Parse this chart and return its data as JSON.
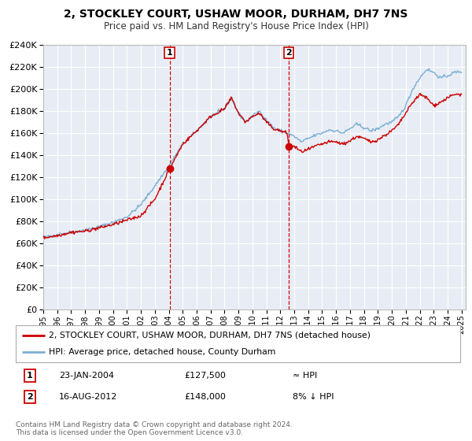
{
  "title": "2, STOCKLEY COURT, USHAW MOOR, DURHAM, DH7 7NS",
  "subtitle": "Price paid vs. HM Land Registry's House Price Index (HPI)",
  "ylim": [
    0,
    240000
  ],
  "yticks": [
    0,
    20000,
    40000,
    60000,
    80000,
    100000,
    120000,
    140000,
    160000,
    180000,
    200000,
    220000,
    240000
  ],
  "xlim_start": 1995.0,
  "xlim_end": 2025.3,
  "background_color": "#ffffff",
  "plot_bg_color": "#e8edf5",
  "grid_color": "#ffffff",
  "hpi_color": "#7bafd4",
  "price_color": "#cc0000",
  "sale1_date": 2004.06,
  "sale1_price": 127500,
  "sale2_date": 2012.62,
  "sale2_price": 148000,
  "legend_label1": "2, STOCKLEY COURT, USHAW MOOR, DURHAM, DH7 7NS (detached house)",
  "legend_label2": "HPI: Average price, detached house, County Durham",
  "table_row1_label": "1",
  "table_row1_date": "23-JAN-2004",
  "table_row1_price": "£127,500",
  "table_row1_hpi": "≈ HPI",
  "table_row2_label": "2",
  "table_row2_date": "16-AUG-2012",
  "table_row2_price": "£148,000",
  "table_row2_hpi": "8% ↓ HPI",
  "footer_line1": "Contains HM Land Registry data © Crown copyright and database right 2024.",
  "footer_line2": "This data is licensed under the Open Government Licence v3.0.",
  "hpi_anchors": [
    [
      1995.0,
      65000
    ],
    [
      1996.0,
      68000
    ],
    [
      1997.0,
      70000
    ],
    [
      1998.0,
      72000
    ],
    [
      1999.0,
      75000
    ],
    [
      2000.0,
      79000
    ],
    [
      2001.0,
      84000
    ],
    [
      2002.0,
      95000
    ],
    [
      2003.0,
      112000
    ],
    [
      2004.0,
      130000
    ],
    [
      2005.0,
      150000
    ],
    [
      2006.0,
      162000
    ],
    [
      2007.0,
      175000
    ],
    [
      2008.0,
      182000
    ],
    [
      2008.5,
      192000
    ],
    [
      2009.0,
      178000
    ],
    [
      2009.5,
      170000
    ],
    [
      2010.0,
      175000
    ],
    [
      2010.5,
      180000
    ],
    [
      2011.0,
      172000
    ],
    [
      2011.5,
      165000
    ],
    [
      2012.0,
      162000
    ],
    [
      2012.5,
      160000
    ],
    [
      2013.0,
      157000
    ],
    [
      2013.5,
      152000
    ],
    [
      2014.0,
      155000
    ],
    [
      2014.5,
      158000
    ],
    [
      2015.0,
      160000
    ],
    [
      2015.5,
      163000
    ],
    [
      2016.0,
      162000
    ],
    [
      2016.5,
      160000
    ],
    [
      2017.0,
      164000
    ],
    [
      2017.5,
      168000
    ],
    [
      2018.0,
      165000
    ],
    [
      2018.5,
      162000
    ],
    [
      2019.0,
      164000
    ],
    [
      2019.5,
      168000
    ],
    [
      2020.0,
      170000
    ],
    [
      2020.5,
      175000
    ],
    [
      2021.0,
      185000
    ],
    [
      2021.5,
      200000
    ],
    [
      2022.0,
      210000
    ],
    [
      2022.5,
      218000
    ],
    [
      2023.0,
      215000
    ],
    [
      2023.5,
      210000
    ],
    [
      2024.0,
      212000
    ],
    [
      2024.5,
      215000
    ],
    [
      2025.0,
      216000
    ]
  ],
  "red_anchors": [
    [
      1995.0,
      65000
    ],
    [
      1996.0,
      67000
    ],
    [
      1997.0,
      70000
    ],
    [
      1998.0,
      71000
    ],
    [
      1999.0,
      74000
    ],
    [
      2000.0,
      77000
    ],
    [
      2001.0,
      81000
    ],
    [
      2002.0,
      85000
    ],
    [
      2003.0,
      100000
    ],
    [
      2004.06,
      127500
    ],
    [
      2005.0,
      150000
    ],
    [
      2006.0,
      162000
    ],
    [
      2007.0,
      175000
    ],
    [
      2008.0,
      182000
    ],
    [
      2008.5,
      192000
    ],
    [
      2009.0,
      178000
    ],
    [
      2009.5,
      170000
    ],
    [
      2010.0,
      175000
    ],
    [
      2010.5,
      178000
    ],
    [
      2011.0,
      170000
    ],
    [
      2011.5,
      164000
    ],
    [
      2012.0,
      162000
    ],
    [
      2012.5,
      160000
    ],
    [
      2012.62,
      148000
    ],
    [
      2013.0,
      148000
    ],
    [
      2013.5,
      143000
    ],
    [
      2014.0,
      145000
    ],
    [
      2014.5,
      148000
    ],
    [
      2015.0,
      150000
    ],
    [
      2015.5,
      152000
    ],
    [
      2016.0,
      152000
    ],
    [
      2016.5,
      150000
    ],
    [
      2017.0,
      153000
    ],
    [
      2017.5,
      157000
    ],
    [
      2018.0,
      155000
    ],
    [
      2018.5,
      152000
    ],
    [
      2019.0,
      154000
    ],
    [
      2019.5,
      158000
    ],
    [
      2020.0,
      162000
    ],
    [
      2020.5,
      168000
    ],
    [
      2021.0,
      178000
    ],
    [
      2021.5,
      188000
    ],
    [
      2022.0,
      195000
    ],
    [
      2022.5,
      192000
    ],
    [
      2023.0,
      185000
    ],
    [
      2023.5,
      188000
    ],
    [
      2024.0,
      192000
    ],
    [
      2024.5,
      195000
    ],
    [
      2025.0,
      195000
    ]
  ]
}
